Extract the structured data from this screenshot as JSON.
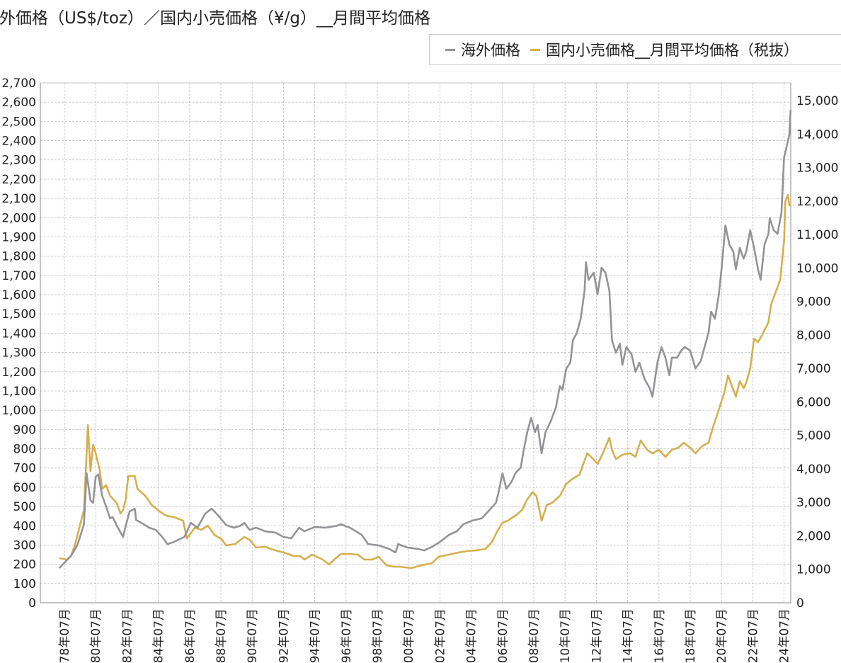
{
  "chart_data": {
    "type": "line",
    "title": "海外価格（US$/toz）／国内小売価格（¥/g）__月間平均価格",
    "xlabel": "",
    "ylabel_left": "",
    "ylabel_right": "",
    "grid": true,
    "legend_position": "top-right",
    "y_left": {
      "range": [
        0,
        2700
      ],
      "ticks": [
        "0",
        "100",
        "200",
        "300",
        "400",
        "500",
        "600",
        "700",
        "800",
        "900",
        "1,000",
        "1,100",
        "1,200",
        "1,300",
        "1,400",
        "1,500",
        "1,600",
        "1,700",
        "1,800",
        "1,900",
        "2,000",
        "2,100",
        "2,200",
        "2,300",
        "2,400",
        "2,500",
        "2,600",
        "2,700"
      ]
    },
    "y_right": {
      "range": [
        0,
        15530
      ],
      "ticks": [
        "0",
        "1,000",
        "2,000",
        "3,000",
        "4,000",
        "5,000",
        "6,000",
        "7,000",
        "8,000",
        "9,000",
        "10,000",
        "11,000",
        "12,000",
        "13,000",
        "14,000",
        "15,000"
      ]
    },
    "x_ticks": [
      "78年07月",
      "80年07月",
      "82年07月",
      "84年07月",
      "86年07月",
      "88年07月",
      "90年07月",
      "92年07月",
      "94年07月",
      "96年07月",
      "98年07月",
      "00年07月",
      "02年07月",
      "04年07月",
      "06年07月",
      "08年07月",
      "10年07月",
      "12年07月",
      "14年07月",
      "16年07月",
      "18年07月",
      "20年07月",
      "22年07月",
      "24年07月"
    ],
    "series": [
      {
        "name": "海外価格",
        "axis": "left",
        "color": "#939398",
        "points": [
          [
            "1978-03",
            180
          ],
          [
            "1978-12",
            243
          ],
          [
            "1979-05",
            300
          ],
          [
            "1979-10",
            408
          ],
          [
            "1979-12",
            673
          ],
          [
            "1980-03",
            533
          ],
          [
            "1980-05",
            519
          ],
          [
            "1980-07",
            655
          ],
          [
            "1980-09",
            666
          ],
          [
            "1980-12",
            555
          ],
          [
            "1981-03",
            500
          ],
          [
            "1981-06",
            438
          ],
          [
            "1981-08",
            445
          ],
          [
            "1981-12",
            390
          ],
          [
            "1982-04",
            342
          ],
          [
            "1982-06",
            400
          ],
          [
            "1982-09",
            474
          ],
          [
            "1983-01",
            489
          ],
          [
            "1983-02",
            430
          ],
          [
            "1983-06",
            415
          ],
          [
            "1983-12",
            390
          ],
          [
            "1984-05",
            379
          ],
          [
            "1984-10",
            342
          ],
          [
            "1985-02",
            305
          ],
          [
            "1985-07",
            316
          ],
          [
            "1986-03",
            342
          ],
          [
            "1986-08",
            415
          ],
          [
            "1987-01",
            390
          ],
          [
            "1987-07",
            463
          ],
          [
            "1987-12",
            489
          ],
          [
            "1988-06",
            445
          ],
          [
            "1988-11",
            404
          ],
          [
            "1989-05",
            390
          ],
          [
            "1989-10",
            400
          ],
          [
            "1990-01",
            415
          ],
          [
            "1990-05",
            379
          ],
          [
            "1990-10",
            390
          ],
          [
            "1991-05",
            371
          ],
          [
            "1992-01",
            364
          ],
          [
            "1992-07",
            342
          ],
          [
            "1993-01",
            335
          ],
          [
            "1993-07",
            390
          ],
          [
            "1993-11",
            371
          ],
          [
            "1994-07",
            394
          ],
          [
            "1995-03",
            390
          ],
          [
            "1995-12",
            400
          ],
          [
            "1996-03",
            408
          ],
          [
            "1996-10",
            390
          ],
          [
            "1997-07",
            353
          ],
          [
            "1997-12",
            305
          ],
          [
            "1998-08",
            298
          ],
          [
            "1999-04",
            280
          ],
          [
            "1999-09",
            261
          ],
          [
            "1999-11",
            305
          ],
          [
            "2000-06",
            287
          ],
          [
            "2001-02",
            280
          ],
          [
            "2001-07",
            272
          ],
          [
            "2002-01",
            291
          ],
          [
            "2002-07",
            316
          ],
          [
            "2003-02",
            353
          ],
          [
            "2003-08",
            371
          ],
          [
            "2004-01",
            408
          ],
          [
            "2004-08",
            427
          ],
          [
            "2005-03",
            438
          ],
          [
            "2005-08",
            474
          ],
          [
            "2006-02",
            519
          ],
          [
            "2006-04",
            574
          ],
          [
            "2006-07",
            673
          ],
          [
            "2006-10",
            592
          ],
          [
            "2007-02",
            629
          ],
          [
            "2007-05",
            673
          ],
          [
            "2007-09",
            702
          ],
          [
            "2007-11",
            783
          ],
          [
            "2008-02",
            886
          ],
          [
            "2008-05",
            960
          ],
          [
            "2008-08",
            886
          ],
          [
            "2008-10",
            923
          ],
          [
            "2009-01",
            776
          ],
          [
            "2009-04",
            886
          ],
          [
            "2009-08",
            942
          ],
          [
            "2009-12",
            1015
          ],
          [
            "2010-03",
            1125
          ],
          [
            "2010-05",
            1107
          ],
          [
            "2010-08",
            1217
          ],
          [
            "2010-11",
            1247
          ],
          [
            "2011-01",
            1364
          ],
          [
            "2011-04",
            1401
          ],
          [
            "2011-07",
            1475
          ],
          [
            "2011-10",
            1622
          ],
          [
            "2011-11",
            1769
          ],
          [
            "2012-01",
            1677
          ],
          [
            "2012-05",
            1714
          ],
          [
            "2012-08",
            1603
          ],
          [
            "2012-11",
            1740
          ],
          [
            "2013-02",
            1714
          ],
          [
            "2013-05",
            1622
          ],
          [
            "2013-07",
            1364
          ],
          [
            "2013-10",
            1298
          ],
          [
            "2014-01",
            1346
          ],
          [
            "2014-03",
            1236
          ],
          [
            "2014-06",
            1328
          ],
          [
            "2014-10",
            1291
          ],
          [
            "2015-01",
            1199
          ],
          [
            "2015-04",
            1247
          ],
          [
            "2015-08",
            1162
          ],
          [
            "2015-12",
            1114
          ],
          [
            "2016-02",
            1070
          ],
          [
            "2016-06",
            1254
          ],
          [
            "2016-09",
            1328
          ],
          [
            "2016-12",
            1273
          ],
          [
            "2017-03",
            1181
          ],
          [
            "2017-05",
            1273
          ],
          [
            "2017-09",
            1273
          ],
          [
            "2017-12",
            1309
          ],
          [
            "2018-03",
            1328
          ],
          [
            "2018-07",
            1309
          ],
          [
            "2018-11",
            1217
          ],
          [
            "2019-03",
            1254
          ],
          [
            "2019-06",
            1328
          ],
          [
            "2019-09",
            1401
          ],
          [
            "2019-11",
            1512
          ],
          [
            "2020-02",
            1475
          ],
          [
            "2020-05",
            1603
          ],
          [
            "2020-07",
            1732
          ],
          [
            "2020-10",
            1960
          ],
          [
            "2021-01",
            1861
          ],
          [
            "2021-04",
            1824
          ],
          [
            "2021-06",
            1732
          ],
          [
            "2021-09",
            1843
          ],
          [
            "2021-12",
            1787
          ],
          [
            "2022-02",
            1824
          ],
          [
            "2022-05",
            1935
          ],
          [
            "2022-08",
            1843
          ],
          [
            "2022-11",
            1732
          ],
          [
            "2023-01",
            1677
          ],
          [
            "2023-04",
            1861
          ],
          [
            "2023-07",
            1916
          ],
          [
            "2023-08",
            1997
          ],
          [
            "2023-11",
            1935
          ],
          [
            "2024-02",
            1916
          ],
          [
            "2024-05",
            2026
          ],
          [
            "2024-07",
            2313
          ],
          [
            "2024-08",
            2339
          ],
          [
            "2024-11",
            2431
          ],
          [
            "2024-12",
            2560
          ]
        ]
      },
      {
        "name": "国内小売価格__月間平均価格（税抜）",
        "axis": "right",
        "color": "#d4b04f",
        "points": [
          [
            "1978-03",
            1333
          ],
          [
            "1978-09",
            1290
          ],
          [
            "1978-12",
            1396
          ],
          [
            "1979-03",
            1714
          ],
          [
            "1979-06",
            2179
          ],
          [
            "1979-10",
            2771
          ],
          [
            "1980-01",
            5310
          ],
          [
            "1980-03",
            3935
          ],
          [
            "1980-05",
            4718
          ],
          [
            "1980-07",
            4464
          ],
          [
            "1980-10",
            3977
          ],
          [
            "1980-12",
            3406
          ],
          [
            "1981-03",
            3512
          ],
          [
            "1981-06",
            3194
          ],
          [
            "1981-11",
            2983
          ],
          [
            "1982-02",
            2666
          ],
          [
            "1982-04",
            2771
          ],
          [
            "1982-06",
            3089
          ],
          [
            "1982-08",
            3787
          ],
          [
            "1983-01",
            3787
          ],
          [
            "1983-03",
            3406
          ],
          [
            "1983-09",
            3194
          ],
          [
            "1984-02",
            2919
          ],
          [
            "1984-08",
            2729
          ],
          [
            "1985-01",
            2602
          ],
          [
            "1985-07",
            2560
          ],
          [
            "1986-02",
            2454
          ],
          [
            "1986-05",
            1925
          ],
          [
            "1986-11",
            2242
          ],
          [
            "1987-04",
            2179
          ],
          [
            "1987-09",
            2306
          ],
          [
            "1988-02",
            2031
          ],
          [
            "1988-08",
            1883
          ],
          [
            "1988-11",
            1714
          ],
          [
            "1989-06",
            1756
          ],
          [
            "1990-01",
            1967
          ],
          [
            "1990-05",
            1883
          ],
          [
            "1990-10",
            1650
          ],
          [
            "1991-05",
            1671
          ],
          [
            "1991-11",
            1587
          ],
          [
            "1992-07",
            1502
          ],
          [
            "1993-03",
            1396
          ],
          [
            "1993-08",
            1396
          ],
          [
            "1993-11",
            1290
          ],
          [
            "1994-05",
            1439
          ],
          [
            "1995-01",
            1290
          ],
          [
            "1995-06",
            1142
          ],
          [
            "1995-10",
            1290
          ],
          [
            "1996-03",
            1460
          ],
          [
            "1996-10",
            1460
          ],
          [
            "1997-04",
            1439
          ],
          [
            "1997-09",
            1290
          ],
          [
            "1998-03",
            1290
          ],
          [
            "1998-08",
            1375
          ],
          [
            "1999-02",
            1121
          ],
          [
            "1999-07",
            1079
          ],
          [
            "1999-12",
            1079
          ],
          [
            "2000-09",
            1037
          ],
          [
            "2001-05",
            1121
          ],
          [
            "2002-01",
            1185
          ],
          [
            "2002-06",
            1375
          ],
          [
            "2003-02",
            1439
          ],
          [
            "2003-09",
            1502
          ],
          [
            "2004-04",
            1544
          ],
          [
            "2004-11",
            1565
          ],
          [
            "2005-06",
            1608
          ],
          [
            "2005-11",
            1819
          ],
          [
            "2006-03",
            2137
          ],
          [
            "2006-07",
            2391
          ],
          [
            "2006-11",
            2454
          ],
          [
            "2007-05",
            2602
          ],
          [
            "2007-10",
            2771
          ],
          [
            "2008-02",
            3089
          ],
          [
            "2008-06",
            3300
          ],
          [
            "2008-09",
            3194
          ],
          [
            "2009-01",
            2454
          ],
          [
            "2009-05",
            2919
          ],
          [
            "2009-09",
            2983
          ],
          [
            "2010-03",
            3194
          ],
          [
            "2010-08",
            3554
          ],
          [
            "2010-12",
            3681
          ],
          [
            "2011-06",
            3829
          ],
          [
            "2011-10",
            4252
          ],
          [
            "2011-12",
            4464
          ],
          [
            "2012-03",
            4358
          ],
          [
            "2012-08",
            4146
          ],
          [
            "2012-12",
            4464
          ],
          [
            "2013-05",
            4929
          ],
          [
            "2013-07",
            4570
          ],
          [
            "2013-10",
            4294
          ],
          [
            "2014-03",
            4421
          ],
          [
            "2014-09",
            4464
          ],
          [
            "2015-01",
            4358
          ],
          [
            "2015-05",
            4845
          ],
          [
            "2015-10",
            4570
          ],
          [
            "2016-02",
            4464
          ],
          [
            "2016-07",
            4570
          ],
          [
            "2016-12",
            4358
          ],
          [
            "2017-05",
            4570
          ],
          [
            "2017-10",
            4633
          ],
          [
            "2018-02",
            4781
          ],
          [
            "2018-07",
            4633
          ],
          [
            "2018-11",
            4464
          ],
          [
            "2019-04",
            4675
          ],
          [
            "2019-09",
            4781
          ],
          [
            "2020-01",
            5310
          ],
          [
            "2020-05",
            5775
          ],
          [
            "2020-09",
            6262
          ],
          [
            "2020-12",
            6791
          ],
          [
            "2021-04",
            6368
          ],
          [
            "2021-06",
            6156
          ],
          [
            "2021-09",
            6621
          ],
          [
            "2021-12",
            6410
          ],
          [
            "2022-02",
            6579
          ],
          [
            "2022-05",
            7002
          ],
          [
            "2022-08",
            7891
          ],
          [
            "2022-11",
            7785
          ],
          [
            "2023-03",
            8060
          ],
          [
            "2023-07",
            8377
          ],
          [
            "2023-09",
            8906
          ],
          [
            "2024-01",
            9330
          ],
          [
            "2024-04",
            9647
          ],
          [
            "2024-07",
            10810
          ],
          [
            "2024-08",
            11974
          ],
          [
            "2024-10",
            12185
          ],
          [
            "2024-11",
            11868
          ],
          [
            "2024-12",
            11910
          ]
        ]
      }
    ]
  }
}
